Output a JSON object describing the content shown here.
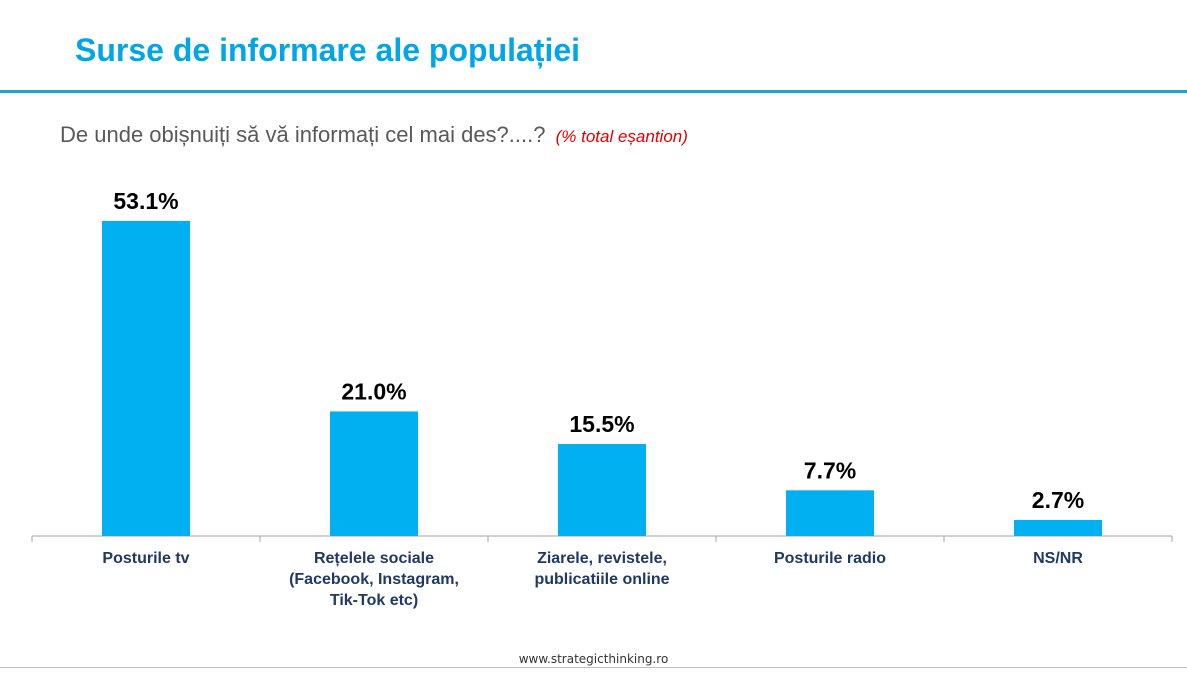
{
  "slide": {
    "title": "Surse de informare ale populației",
    "question": "De unde obișnuiți să vă informați cel mai des?....?",
    "question_note": "(% total eșantion)",
    "footer": "www.strategicthinking.ro"
  },
  "colors": {
    "bar": "#00b0f0",
    "title": "#00a6e6",
    "category_label": "#1f3864",
    "note": "#e00000"
  },
  "chart_data": {
    "type": "bar",
    "categories": [
      [
        "Posturile tv"
      ],
      [
        "Rețelele sociale",
        "(Facebook, Instagram,",
        "Tik-Tok etc)"
      ],
      [
        "Ziarele, revistele,",
        "publicatiile online"
      ],
      [
        "Posturile radio"
      ],
      [
        "NS/NR"
      ]
    ],
    "values": [
      53.1,
      21.0,
      15.5,
      7.7,
      2.7
    ],
    "value_labels": [
      "53.1%",
      "21.0%",
      "15.5%",
      "7.7%",
      "2.7%"
    ],
    "ylim": [
      0,
      53.1
    ],
    "grid": false,
    "legend": "none"
  }
}
